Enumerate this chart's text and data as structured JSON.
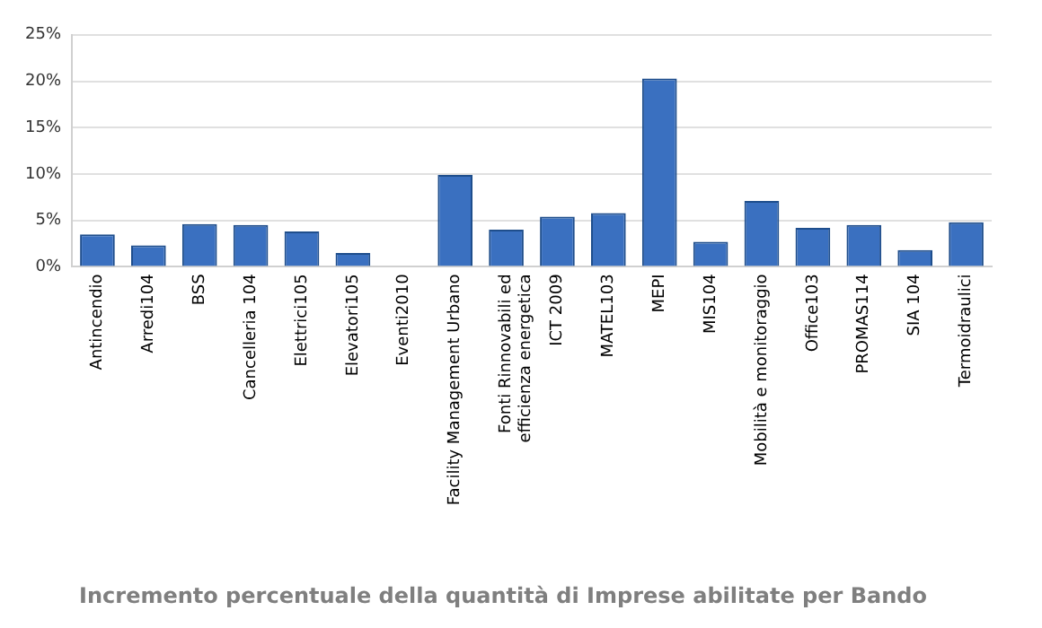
{
  "chart_data": {
    "type": "bar",
    "title": "Incremento percentuale della quantità di Imprese abilitate per Bando",
    "categories": [
      "Antincendio",
      "Arredi104",
      "BSS",
      "Cancelleria 104",
      "Elettrici105",
      "Elevatori105",
      "Eventi2010",
      "Facility Management Urbano",
      "Fonti Rinnovabili ed efficienza energetica",
      "ICT 2009",
      "MATEL103",
      "MEPI",
      "MIS104",
      "Mobilità e monitoraggio",
      "Office103",
      "PROMAS114",
      "SIA 104",
      "Termoidraulici"
    ],
    "values": [
      3.5,
      2.3,
      4.6,
      4.5,
      3.8,
      1.5,
      0,
      9.9,
      4.0,
      5.4,
      5.8,
      20.3,
      2.7,
      7.1,
      4.2,
      4.5,
      1.8,
      4.8
    ],
    "color": "#3a70c0",
    "ylim": [
      0,
      25
    ],
    "yticks": [
      {
        "value": 0,
        "label": "0%"
      },
      {
        "value": 5,
        "label": "5%"
      },
      {
        "value": 10,
        "label": "10%"
      },
      {
        "value": 15,
        "label": "15%"
      },
      {
        "value": 20,
        "label": "20%"
      },
      {
        "value": 25,
        "label": "25%"
      }
    ],
    "grid": "y",
    "legend": false
  }
}
